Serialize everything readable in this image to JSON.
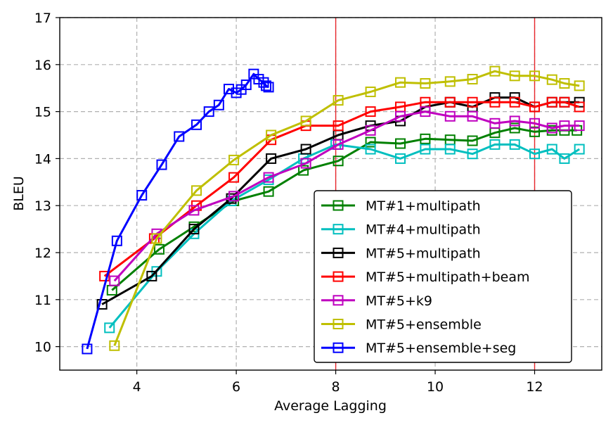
{
  "chart_data": {
    "type": "line",
    "xlabel": "Average Lagging",
    "ylabel": "BLEU",
    "xlim": [
      2.45,
      13.35
    ],
    "ylim": [
      9.5,
      17
    ],
    "xticks": [
      4,
      6,
      8,
      10,
      12
    ],
    "yticks": [
      10,
      11,
      12,
      13,
      14,
      15,
      16,
      17
    ],
    "grid": true,
    "grid_style": "dashed",
    "vlines": [
      {
        "x": 8,
        "color": "#e8262b"
      },
      {
        "x": 12,
        "color": "#e8262b"
      }
    ],
    "legend_position": "lower-right",
    "marker": "open-square",
    "series": [
      {
        "name": "MT#1+multipath",
        "color": "#008000",
        "x": [
          3.5,
          4.45,
          5.15,
          5.95,
          6.65,
          7.35,
          8.05,
          8.7,
          9.3,
          9.8,
          10.3,
          10.75,
          11.2,
          11.6,
          12.0,
          12.35,
          12.6,
          12.85
        ],
        "y": [
          11.2,
          12.07,
          12.55,
          13.1,
          13.3,
          13.75,
          13.95,
          14.35,
          14.32,
          14.42,
          14.4,
          14.38,
          14.55,
          14.65,
          14.57,
          14.6,
          14.6,
          14.6
        ]
      },
      {
        "name": "MT#4+multipath",
        "color": "#00bfbf",
        "x": [
          3.45,
          4.4,
          5.15,
          5.9,
          6.65,
          7.35,
          8.0,
          8.7,
          9.3,
          9.8,
          10.3,
          10.75,
          11.2,
          11.6,
          12.0,
          12.35,
          12.6,
          12.9
        ],
        "y": [
          10.4,
          11.6,
          12.4,
          13.1,
          13.55,
          14.0,
          14.3,
          14.2,
          14.0,
          14.2,
          14.2,
          14.1,
          14.3,
          14.3,
          14.1,
          14.2,
          14.0,
          14.2
        ]
      },
      {
        "name": "MT#5+multipath",
        "color": "#000000",
        "x": [
          3.3,
          4.3,
          5.15,
          5.9,
          6.7,
          7.4,
          8.05,
          8.7,
          9.3,
          9.8,
          10.3,
          10.75,
          11.2,
          11.6,
          12.0,
          12.35,
          12.6,
          12.9
        ],
        "y": [
          10.9,
          11.5,
          12.5,
          13.15,
          14.0,
          14.2,
          14.5,
          14.7,
          14.8,
          15.1,
          15.2,
          15.1,
          15.3,
          15.3,
          15.1,
          15.2,
          15.2,
          15.2
        ]
      },
      {
        "name": "MT#5+multipath+beam",
        "color": "#ff0000",
        "x": [
          3.35,
          4.35,
          5.2,
          5.95,
          6.7,
          7.4,
          8.05,
          8.7,
          9.3,
          9.8,
          10.3,
          10.75,
          11.2,
          11.6,
          12.0,
          12.35,
          12.6,
          12.9
        ],
        "y": [
          11.5,
          12.3,
          13.0,
          13.6,
          14.4,
          14.7,
          14.7,
          15.0,
          15.1,
          15.2,
          15.2,
          15.2,
          15.2,
          15.2,
          15.1,
          15.2,
          15.2,
          15.1
        ]
      },
      {
        "name": "MT#5+k9",
        "color": "#bf00bf",
        "x": [
          3.55,
          4.4,
          5.15,
          5.95,
          6.65,
          7.4,
          8.05,
          8.7,
          9.3,
          9.8,
          10.3,
          10.75,
          11.2,
          11.6,
          12.0,
          12.35,
          12.6,
          12.9
        ],
        "y": [
          11.4,
          12.4,
          12.9,
          13.2,
          13.6,
          13.9,
          14.3,
          14.6,
          14.9,
          15.0,
          14.9,
          14.9,
          14.75,
          14.8,
          14.75,
          14.65,
          14.7,
          14.7
        ]
      },
      {
        "name": "MT#5+ensemble",
        "color": "#bfbf00",
        "x": [
          3.55,
          4.4,
          5.2,
          5.95,
          6.7,
          7.4,
          8.05,
          8.7,
          9.3,
          9.8,
          10.3,
          10.75,
          11.2,
          11.6,
          12.0,
          12.35,
          12.6,
          12.9
        ],
        "y": [
          10.02,
          12.3,
          13.32,
          13.97,
          14.5,
          14.8,
          15.24,
          15.42,
          15.62,
          15.6,
          15.64,
          15.69,
          15.86,
          15.76,
          15.76,
          15.68,
          15.6,
          15.55
        ]
      },
      {
        "name": "MT#5+ensemble+seg",
        "color": "#0000ff",
        "x": [
          3.0,
          3.6,
          4.1,
          4.5,
          4.85,
          5.2,
          5.45,
          5.65,
          5.85,
          6.0,
          6.1,
          6.2,
          6.35,
          6.45,
          6.55,
          6.6,
          6.65
        ],
        "y": [
          9.95,
          12.25,
          13.22,
          13.87,
          14.47,
          14.72,
          15.0,
          15.14,
          15.48,
          15.4,
          15.47,
          15.57,
          15.8,
          15.69,
          15.62,
          15.55,
          15.52
        ]
      }
    ]
  }
}
